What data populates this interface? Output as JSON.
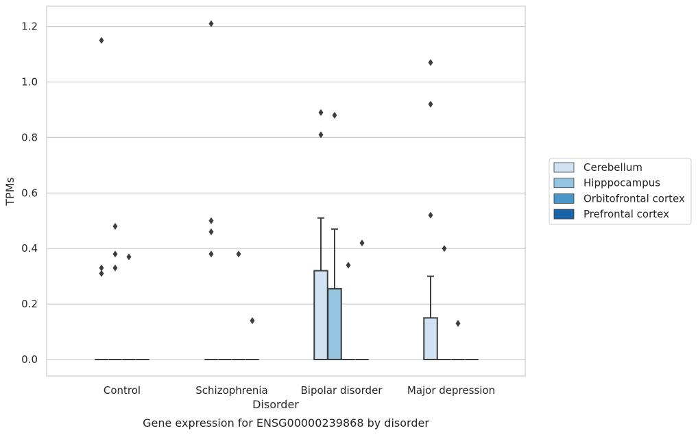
{
  "caption": "Gene expression for ENSG00000239868 by disorder",
  "chart_data": {
    "type": "box",
    "title": "",
    "xlabel": "Disorder",
    "ylabel": "TPMs",
    "categories": [
      "Control",
      "Schizophrenia",
      "Bipolar disorder",
      "Major depression"
    ],
    "ylim": [
      -0.06,
      1.27
    ],
    "yticks": [
      0.0,
      0.2,
      0.4,
      0.6,
      0.8,
      1.0,
      1.2
    ],
    "ytick_labels": [
      "0.0",
      "0.2",
      "0.4",
      "0.6",
      "0.8",
      "1.0",
      "1.2"
    ],
    "grid": "horizontal",
    "legend_placement": "right",
    "series": [
      {
        "name": "Cerebellum",
        "color": "#d0e1f2",
        "boxes": [
          {
            "q1": 0,
            "median": 0,
            "q3": 0,
            "whisker_low": 0,
            "whisker_high": 0,
            "outliers": [
              1.15,
              0.33,
              0.31
            ]
          },
          {
            "q1": 0,
            "median": 0,
            "q3": 0,
            "whisker_low": 0,
            "whisker_high": 0,
            "outliers": [
              1.21,
              0.5,
              0.46,
              0.38
            ]
          },
          {
            "q1": 0,
            "median": 0,
            "q3": 0.32,
            "whisker_low": 0,
            "whisker_high": 0.51,
            "outliers": [
              0.89,
              0.81
            ]
          },
          {
            "q1": 0,
            "median": 0,
            "q3": 0.15,
            "whisker_low": 0,
            "whisker_high": 0.3,
            "outliers": [
              1.07,
              0.92,
              0.52
            ]
          }
        ]
      },
      {
        "name": "Hipppocampus",
        "color": "#94c4df",
        "boxes": [
          {
            "q1": 0,
            "median": 0,
            "q3": 0,
            "whisker_low": 0,
            "whisker_high": 0,
            "outliers": [
              0.48,
              0.38,
              0.33
            ]
          },
          {
            "q1": 0,
            "median": 0,
            "q3": 0,
            "whisker_low": 0,
            "whisker_high": 0,
            "outliers": []
          },
          {
            "q1": 0,
            "median": 0,
            "q3": 0.255,
            "whisker_low": 0,
            "whisker_high": 0.47,
            "outliers": [
              0.88
            ]
          },
          {
            "q1": 0,
            "median": 0,
            "q3": 0,
            "whisker_low": 0,
            "whisker_high": 0,
            "outliers": [
              0.4
            ]
          }
        ]
      },
      {
        "name": "Orbitofrontal cortex",
        "color": "#4a98c9",
        "boxes": [
          {
            "q1": 0,
            "median": 0,
            "q3": 0,
            "whisker_low": 0,
            "whisker_high": 0,
            "outliers": [
              0.37
            ]
          },
          {
            "q1": 0,
            "median": 0,
            "q3": 0,
            "whisker_low": 0,
            "whisker_high": 0,
            "outliers": [
              0.38
            ]
          },
          {
            "q1": 0,
            "median": 0,
            "q3": 0,
            "whisker_low": 0,
            "whisker_high": 0,
            "outliers": [
              0.34
            ]
          },
          {
            "q1": 0,
            "median": 0,
            "q3": 0,
            "whisker_low": 0,
            "whisker_high": 0,
            "outliers": [
              0.13
            ]
          }
        ]
      },
      {
        "name": "Prefrontal cortex",
        "color": "#1764ab",
        "boxes": [
          {
            "q1": 0,
            "median": 0,
            "q3": 0,
            "whisker_low": 0,
            "whisker_high": 0,
            "outliers": []
          },
          {
            "q1": 0,
            "median": 0,
            "q3": 0,
            "whisker_low": 0,
            "whisker_high": 0,
            "outliers": [
              0.14
            ]
          },
          {
            "q1": 0,
            "median": 0,
            "q3": 0,
            "whisker_low": 0,
            "whisker_high": 0,
            "outliers": [
              0.42
            ]
          },
          {
            "q1": 0,
            "median": 0,
            "q3": 0,
            "whisker_low": 0,
            "whisker_high": 0,
            "outliers": []
          }
        ]
      }
    ]
  }
}
